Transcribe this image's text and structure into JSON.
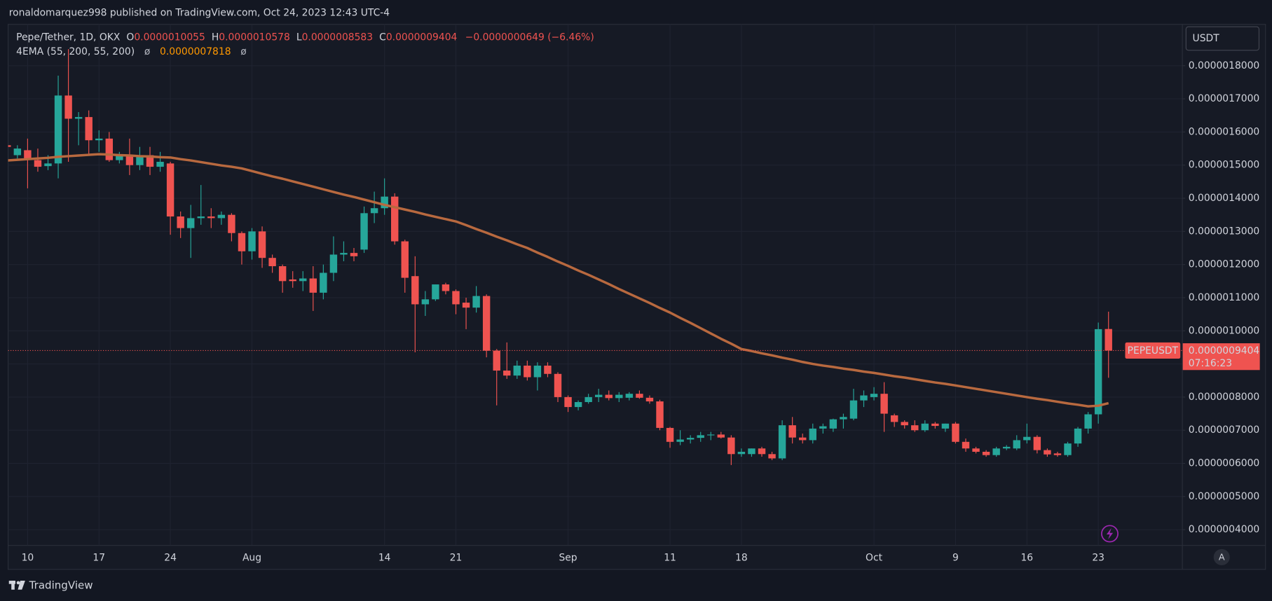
{
  "header": {
    "published": "ronaldomarquez998 published on TradingView.com, Oct 24, 2023 12:43 UTC-4"
  },
  "footer": {
    "brand": "TradingView"
  },
  "chart_data": {
    "type": "candlestick",
    "legend": {
      "symbol": "Pepe/Tether, 1D, OKX",
      "o_label": "O",
      "o": "0.0000010055",
      "h_label": "H",
      "h": "0.0000010578",
      "l_label": "L",
      "l": "0.0000008583",
      "c_label": "C",
      "c": "0.0000009404",
      "change": "−0.0000000649 (−6.46%)"
    },
    "currency": "USDT",
    "price_label": {
      "symbol": "PEPEUSDT",
      "price": "0.0000009404",
      "countdown": "07:16:23"
    },
    "scale_mode": "A",
    "up_color": "#26a69a",
    "down_color": "#ef5350",
    "categories": [
      null,
      null,
      "10",
      null,
      null,
      null,
      null,
      null,
      null,
      "17",
      null,
      null,
      null,
      null,
      null,
      null,
      "24",
      null,
      null,
      null,
      null,
      null,
      null,
      null,
      "Aug",
      null,
      null,
      null,
      null,
      null,
      null,
      null,
      null,
      null,
      null,
      null,
      null,
      "14",
      null,
      null,
      null,
      null,
      null,
      null,
      "21",
      null,
      null,
      null,
      null,
      null,
      null,
      null,
      null,
      null,
      null,
      "Sep",
      null,
      null,
      null,
      null,
      null,
      null,
      null,
      null,
      null,
      "11",
      null,
      null,
      null,
      null,
      null,
      null,
      "18",
      null,
      null,
      null,
      null,
      null,
      null,
      null,
      null,
      null,
      null,
      null,
      null,
      "Oct",
      null,
      null,
      null,
      null,
      null,
      null,
      null,
      "9",
      null,
      null,
      null,
      null,
      null,
      null,
      "16",
      null,
      null,
      null,
      null,
      null,
      null,
      "23",
      null
    ],
    "open": [
      1.56e-06,
      1.53e-06,
      1.545e-06,
      1.515e-06,
      1.497e-06,
      1.505e-06,
      1.71e-06,
      1.64e-06,
      1.645e-06,
      1.575e-06,
      1.58e-06,
      1.515e-06,
      1.53e-06,
      1.5e-06,
      1.53e-06,
      1.495e-06,
      1.505e-06,
      1.345e-06,
      1.31e-06,
      1.34e-06,
      1.345e-06,
      1.34e-06,
      1.35e-06,
      1.295e-06,
      1.24e-06,
      1.3e-06,
      1.22e-06,
      1.195e-06,
      1.155e-06,
      1.15e-06,
      1.158e-06,
      1.115e-06,
      1.175e-06,
      1.23e-06,
      1.235e-06,
      1.245e-06,
      1.355e-06,
      1.37e-06,
      1.405e-06,
      1.27e-06,
      1.165e-06,
      1.08e-06,
      1.095e-06,
      1.14e-06,
      1.12e-06,
      1.085e-06,
      1.07e-06,
      1.105e-06,
      9.4e-07,
      8.8e-07,
      8.65e-07,
      8.95e-07,
      8.6e-07,
      8.95e-07,
      8.7e-07,
      8e-07,
      7.7e-07,
      7.85e-07,
      8e-07,
      8.07e-07,
      7.97e-07,
      7.98e-07,
      8.1e-07,
      7.98e-07,
      7.87e-07,
      7.07e-07,
      6.65e-07,
      6.72e-07,
      6.77e-07,
      6.85e-07,
      6.87e-07,
      6.78e-07,
      6.28e-07,
      6.28e-07,
      6.45e-07,
      6.28e-07,
      6.15e-07,
      7.15e-07,
      6.78e-07,
      6.7e-07,
      7.05e-07,
      7.05e-07,
      7.33e-07,
      7.35e-07,
      7.9e-07,
      8e-07,
      8.1e-07,
      7.45e-07,
      7.25e-07,
      7.15e-07,
      7e-07,
      7.2e-07,
      7.05e-07,
      7.2e-07,
      6.65e-07,
      6.45e-07,
      6.35e-07,
      6.25e-07,
      6.45e-07,
      6.45e-07,
      6.7e-07,
      6.8e-07,
      6.4e-07,
      6.3e-07,
      6.25e-07,
      6.6e-07,
      7.05e-07,
      7.48e-07,
      1.0055e-06
    ],
    "high": [
      1.57e-06,
      1.56e-06,
      1.58e-06,
      1.55e-06,
      1.53e-06,
      1.77e-06,
      1.85e-06,
      1.66e-06,
      1.665e-06,
      1.605e-06,
      1.6e-06,
      1.54e-06,
      1.58e-06,
      1.555e-06,
      1.555e-06,
      1.54e-06,
      1.51e-06,
      1.36e-06,
      1.38e-06,
      1.44e-06,
      1.37e-06,
      1.36e-06,
      1.355e-06,
      1.3e-06,
      1.31e-06,
      1.315e-06,
      1.23e-06,
      1.2e-06,
      1.18e-06,
      1.18e-06,
      1.195e-06,
      1.2e-06,
      1.285e-06,
      1.27e-06,
      1.25e-06,
      1.375e-06,
      1.42e-06,
      1.46e-06,
      1.415e-06,
      1.275e-06,
      1.225e-06,
      1.12e-06,
      1.14e-06,
      1.145e-06,
      1.125e-06,
      1.1e-06,
      1.135e-06,
      1.11e-06,
      9.45e-07,
      9.65e-07,
      9.1e-07,
      9.1e-07,
      9.05e-07,
      9.05e-07,
      8.75e-07,
      8.05e-07,
      7.9e-07,
      8.1e-07,
      8.25e-07,
      8.2e-07,
      8.15e-07,
      8.15e-07,
      8.2e-07,
      8.05e-07,
      7.92e-07,
      7.1e-07,
      7e-07,
      6.85e-07,
      6.95e-07,
      6.95e-07,
      6.95e-07,
      6.85e-07,
      6.45e-07,
      6.45e-07,
      6.5e-07,
      6.35e-07,
      7.3e-07,
      7.4e-07,
      6.9e-07,
      7.2e-07,
      7.2e-07,
      7.35e-07,
      7.5e-07,
      8.25e-07,
      8.2e-07,
      8.3e-07,
      8.45e-07,
      7.5e-07,
      7.3e-07,
      7.3e-07,
      7.3e-07,
      7.25e-07,
      7.2e-07,
      7.25e-07,
      6.75e-07,
      6.5e-07,
      6.4e-07,
      6.5e-07,
      6.55e-07,
      6.85e-07,
      7.2e-07,
      6.85e-07,
      6.45e-07,
      6.35e-07,
      6.65e-07,
      7.1e-07,
      7.55e-07,
      1.025e-06,
      1.0578e-06
    ],
    "low": [
      1.54e-06,
      1.52e-06,
      1.43e-06,
      1.48e-06,
      1.485e-06,
      1.46e-06,
      1.51e-06,
      1.56e-06,
      1.53e-06,
      1.54e-06,
      1.51e-06,
      1.505e-06,
      1.47e-06,
      1.485e-06,
      1.47e-06,
      1.48e-06,
      1.29e-06,
      1.28e-06,
      1.22e-06,
      1.32e-06,
      1.31e-06,
      1.32e-06,
      1.27e-06,
      1.2e-06,
      1.215e-06,
      1.19e-06,
      1.175e-06,
      1.115e-06,
      1.13e-06,
      1.12e-06,
      1.06e-06,
      1.095e-06,
      1.15e-06,
      1.21e-06,
      1.21e-06,
      1.235e-06,
      1.325e-06,
      1.35e-06,
      1.26e-06,
      1.115e-06,
      9.35e-07,
      1.045e-06,
      1.09e-06,
      1.11e-06,
      1.05e-06,
      1.005e-06,
      1.055e-06,
      9.2e-07,
      7.75e-07,
      8.55e-07,
      8.55e-07,
      8.5e-07,
      8.2e-07,
      8.6e-07,
      7.85e-07,
      7.55e-07,
      7.6e-07,
      7.8e-07,
      7.85e-07,
      7.9e-07,
      7.85e-07,
      7.9e-07,
      7.95e-07,
      7.8e-07,
      7e-07,
      6.47e-07,
      6.55e-07,
      6.6e-07,
      6.65e-07,
      6.7e-07,
      6.75e-07,
      5.95e-07,
      6.2e-07,
      6.2e-07,
      6.2e-07,
      6.1e-07,
      6.1e-07,
      6.6e-07,
      6.6e-07,
      6.6e-07,
      6.9e-07,
      6.95e-07,
      7.05e-07,
      7.3e-07,
      7.7e-07,
      7.9e-07,
      6.95e-07,
      7.1e-07,
      7.05e-07,
      6.95e-07,
      6.95e-07,
      7.05e-07,
      6.95e-07,
      6.6e-07,
      6.35e-07,
      6.3e-07,
      6.2e-07,
      6.2e-07,
      6.4e-07,
      6.4e-07,
      6.6e-07,
      6.3e-07,
      6.2e-07,
      6.2e-07,
      6.2e-07,
      6.5e-07,
      6.9e-07,
      7.2e-07,
      8.583e-07
    ],
    "close": [
      1.555e-06,
      1.55e-06,
      1.52e-06,
      1.495e-06,
      1.505e-06,
      1.71e-06,
      1.64e-06,
      1.645e-06,
      1.575e-06,
      1.58e-06,
      1.515e-06,
      1.53e-06,
      1.5e-06,
      1.53e-06,
      1.495e-06,
      1.51e-06,
      1.345e-06,
      1.31e-06,
      1.34e-06,
      1.345e-06,
      1.34e-06,
      1.35e-06,
      1.295e-06,
      1.24e-06,
      1.3e-06,
      1.22e-06,
      1.195e-06,
      1.15e-06,
      1.15e-06,
      1.158e-06,
      1.115e-06,
      1.175e-06,
      1.23e-06,
      1.235e-06,
      1.225e-06,
      1.355e-06,
      1.37e-06,
      1.405e-06,
      1.27e-06,
      1.16e-06,
      1.08e-06,
      1.095e-06,
      1.14e-06,
      1.12e-06,
      1.08e-06,
      1.07e-06,
      1.105e-06,
      9.4e-07,
      8.8e-07,
      8.65e-07,
      8.95e-07,
      8.6e-07,
      8.95e-07,
      8.7e-07,
      8e-07,
      7.7e-07,
      7.85e-07,
      8e-07,
      8.07e-07,
      7.97e-07,
      8.07e-07,
      8.1e-07,
      7.98e-07,
      7.87e-07,
      7.07e-07,
      6.65e-07,
      6.72e-07,
      6.77e-07,
      6.85e-07,
      6.87e-07,
      6.78e-07,
      6.28e-07,
      6.35e-07,
      6.45e-07,
      6.28e-07,
      6.15e-07,
      7.15e-07,
      6.78e-07,
      6.7e-07,
      7.05e-07,
      7.12e-07,
      7.33e-07,
      7.4e-07,
      7.9e-07,
      8.05e-07,
      8.1e-07,
      7.5e-07,
      7.25e-07,
      7.15e-07,
      7e-07,
      7.2e-07,
      7.13e-07,
      7.2e-07,
      6.65e-07,
      6.45e-07,
      6.35e-07,
      6.25e-07,
      6.45e-07,
      6.5e-07,
      6.7e-07,
      6.8e-07,
      6.4e-07,
      6.27e-07,
      6.25e-07,
      6.6e-07,
      7.05e-07,
      7.48e-07,
      1.005e-06,
      9.404e-07
    ],
    "ema": {
      "name": "4EMA (55, 200, 55, 200)",
      "color": "#b8693f",
      "last_label": "0.0000007818",
      "empty_1": "ø",
      "empty_2": "ø",
      "values": [
        1.514e-06,
        1.516e-06,
        1.518e-06,
        1.52e-06,
        1.522e-06,
        1.525e-06,
        1.527e-06,
        1.529e-06,
        1.531e-06,
        1.533e-06,
        1.532e-06,
        1.53e-06,
        1.529e-06,
        1.527e-06,
        1.526e-06,
        1.524e-06,
        1.523e-06,
        1.518e-06,
        1.514e-06,
        1.509e-06,
        1.504e-06,
        1.499e-06,
        1.495e-06,
        1.49e-06,
        1.482e-06,
        1.474e-06,
        1.466e-06,
        1.459e-06,
        1.451e-06,
        1.443e-06,
        1.435e-06,
        1.427e-06,
        1.419e-06,
        1.411e-06,
        1.404e-06,
        1.396e-06,
        1.388e-06,
        1.38e-06,
        1.373e-06,
        1.366e-06,
        1.359e-06,
        1.351e-06,
        1.344e-06,
        1.337e-06,
        1.33e-06,
        1.319e-06,
        1.307e-06,
        1.296e-06,
        1.284e-06,
        1.273e-06,
        1.261e-06,
        1.25e-06,
        1.236e-06,
        1.223e-06,
        1.209e-06,
        1.196e-06,
        1.182e-06,
        1.169e-06,
        1.155e-06,
        1.141e-06,
        1.126e-06,
        1.112e-06,
        1.098e-06,
        1.084e-06,
        1.069e-06,
        1.055e-06,
        1.039e-06,
        1.024e-06,
        1.008e-06,
        9.92e-07,
        9.76e-07,
        9.61e-07,
        9.45e-07,
        9.39e-07,
        9.32e-07,
        9.26e-07,
        9.19e-07,
        9.13e-07,
        9.06e-07,
        9e-07,
        8.95e-07,
        8.91e-07,
        8.86e-07,
        8.82e-07,
        8.77e-07,
        8.73e-07,
        8.68e-07,
        8.63e-07,
        8.59e-07,
        8.54e-07,
        8.49e-07,
        8.44e-07,
        8.4e-07,
        8.35e-07,
        8.3e-07,
        8.25e-07,
        8.2e-07,
        8.15e-07,
        8.1e-07,
        8.05e-07,
        8e-07,
        7.95e-07,
        7.91e-07,
        7.86e-07,
        7.81e-07,
        7.77e-07,
        7.72e-07,
        7.74e-07,
        7.818e-07
      ]
    },
    "ylim": [
      3.536e-07,
      1.9248e-06
    ],
    "yticks": [
      {
        "value": 4e-07,
        "label": "0.0000004000"
      },
      {
        "value": 5e-07,
        "label": "0.0000005000"
      },
      {
        "value": 6e-07,
        "label": "0.0000006000"
      },
      {
        "value": 7e-07,
        "label": "0.0000007000"
      },
      {
        "value": 8e-07,
        "label": "0.0000008000"
      },
      {
        "value": 9e-07,
        "label": "0.0000009000"
      },
      {
        "value": 1e-06,
        "label": "0.0000010000"
      },
      {
        "value": 1.1e-06,
        "label": "0.0000011000"
      },
      {
        "value": 1.2e-06,
        "label": "0.0000012000"
      },
      {
        "value": 1.3e-06,
        "label": "0.0000013000"
      },
      {
        "value": 1.4e-06,
        "label": "0.0000014000"
      },
      {
        "value": 1.5e-06,
        "label": "0.0000015000"
      },
      {
        "value": 1.6e-06,
        "label": "0.0000016000"
      },
      {
        "value": 1.7e-06,
        "label": "0.0000017000"
      },
      {
        "value": 1.8e-06,
        "label": "0.0000018000"
      }
    ],
    "grid": true
  }
}
